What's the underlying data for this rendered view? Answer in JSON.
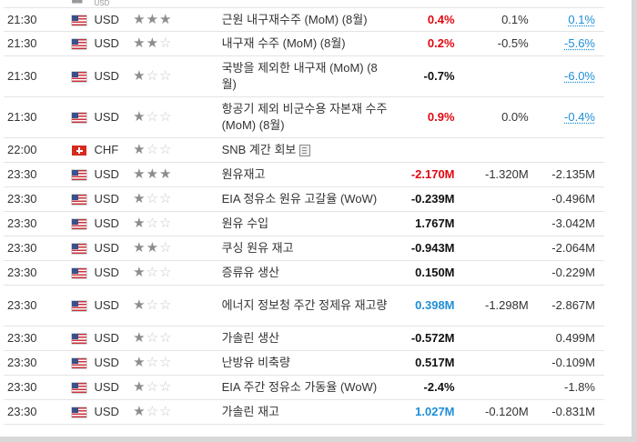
{
  "top_partial_row": {
    "currency": "USD"
  },
  "rows": [
    {
      "time": "21:30",
      "flag": "us",
      "currency": "USD",
      "stars": 3,
      "event": "근원 내구재수주 (MoM) (8월)",
      "actual": "0.4%",
      "actual_color": "red",
      "forecast": "0.1%",
      "previous": "0.1%",
      "previous_link": true,
      "h": 26
    },
    {
      "time": "21:30",
      "flag": "us",
      "currency": "USD",
      "stars": 2,
      "event": "내구재 수주 (MoM) (8월)",
      "actual": "0.2%",
      "actual_color": "red",
      "forecast": "-0.5%",
      "previous": "-5.6%",
      "previous_link": true,
      "h": 27
    },
    {
      "time": "21:30",
      "flag": "us",
      "currency": "USD",
      "stars": 1,
      "event": "국방을 제외한 내구재 (MoM) (8월)",
      "actual": "-0.7%",
      "actual_color": "black",
      "forecast": "",
      "previous": "-6.0%",
      "previous_link": true,
      "h": 45
    },
    {
      "time": "21:30",
      "flag": "us",
      "currency": "USD",
      "stars": 1,
      "event": "항공기 제외 비군수용 자본재 수주 (MoM) (8월)",
      "actual": "0.9%",
      "actual_color": "red",
      "forecast": "0.0%",
      "previous": "-0.4%",
      "previous_link": true,
      "h": 45
    },
    {
      "time": "22:00",
      "flag": "ch",
      "currency": "CHF",
      "stars": 1,
      "event": "SNB 계간 회보",
      "event_icon": "document-icon",
      "actual": "",
      "actual_color": "black",
      "forecast": "",
      "previous": "",
      "previous_link": false,
      "h": 27
    },
    {
      "time": "23:30",
      "flag": "us",
      "currency": "USD",
      "stars": 3,
      "event": "원유재고",
      "actual": "-2.170M",
      "actual_color": "red",
      "forecast": "-1.320M",
      "previous": "-2.135M",
      "previous_link": false,
      "h": 27
    },
    {
      "time": "23:30",
      "flag": "us",
      "currency": "USD",
      "stars": 1,
      "event": "EIA 정유소 원유 고갈율 (WoW)",
      "actual": "-0.239M",
      "actual_color": "black",
      "forecast": "",
      "previous": "-0.496M",
      "previous_link": false,
      "h": 27
    },
    {
      "time": "23:30",
      "flag": "us",
      "currency": "USD",
      "stars": 1,
      "event": "원유 수입",
      "actual": "1.767M",
      "actual_color": "black",
      "forecast": "",
      "previous": "-3.042M",
      "previous_link": false,
      "h": 27
    },
    {
      "time": "23:30",
      "flag": "us",
      "currency": "USD",
      "stars": 2,
      "event": "쿠싱 원유 재고",
      "actual": "-0.943M",
      "actual_color": "black",
      "forecast": "",
      "previous": "-2.064M",
      "previous_link": false,
      "h": 27
    },
    {
      "time": "23:30",
      "flag": "us",
      "currency": "USD",
      "stars": 1,
      "event": "증류유 생산",
      "actual": "0.150M",
      "actual_color": "black",
      "forecast": "",
      "previous": "-0.229M",
      "previous_link": false,
      "h": 27
    },
    {
      "time": "23:30",
      "flag": "us",
      "currency": "USD",
      "stars": 1,
      "event": "에너지 정보청 주간 정제유 재고량",
      "actual": "0.398M",
      "actual_color": "blue",
      "forecast": "-1.298M",
      "previous": "-2.867M",
      "previous_link": false,
      "h": 45
    },
    {
      "time": "23:30",
      "flag": "us",
      "currency": "USD",
      "stars": 1,
      "event": "가솔린 생산",
      "actual": "-0.572M",
      "actual_color": "black",
      "forecast": "",
      "previous": "0.499M",
      "previous_link": false,
      "h": 27
    },
    {
      "time": "23:30",
      "flag": "us",
      "currency": "USD",
      "stars": 1,
      "event": "난방유 비축량",
      "actual": "0.517M",
      "actual_color": "black",
      "forecast": "",
      "previous": "-0.109M",
      "previous_link": false,
      "h": 27
    },
    {
      "time": "23:30",
      "flag": "us",
      "currency": "USD",
      "stars": 1,
      "event": "EIA 주간 정유소 가동율 (WoW)",
      "actual": "-2.4%",
      "actual_color": "black",
      "forecast": "",
      "previous": "-1.8%",
      "previous_link": false,
      "h": 27
    },
    {
      "time": "23:30",
      "flag": "us",
      "currency": "USD",
      "stars": 1,
      "event": "가솔린 재고",
      "actual": "1.027M",
      "actual_color": "blue",
      "forecast": "-0.120M",
      "previous": "-0.831M",
      "previous_link": false,
      "h": 27
    }
  ],
  "icons": {
    "filled_star": "★",
    "empty_star": "☆"
  }
}
